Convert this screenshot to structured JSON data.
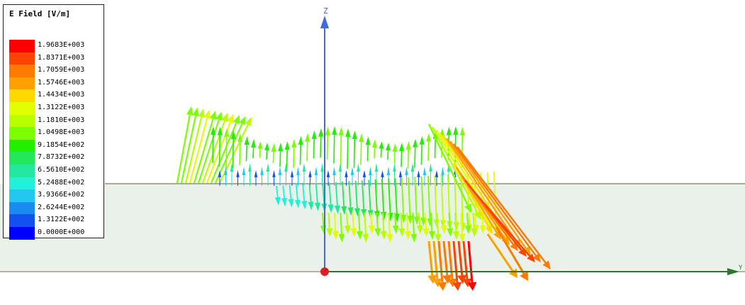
{
  "legend": {
    "title": "E Field [V/m]",
    "entries": [
      {
        "label": "1.9683E+003",
        "color": "#ff0000"
      },
      {
        "label": "1.8371E+003",
        "color": "#ff4400"
      },
      {
        "label": "1.7059E+003",
        "color": "#ff7a00"
      },
      {
        "label": "1.5746E+003",
        "color": "#ffa000"
      },
      {
        "label": "1.4434E+003",
        "color": "#ffd800"
      },
      {
        "label": "1.3122E+003",
        "color": "#e2ff00"
      },
      {
        "label": "1.1810E+003",
        "color": "#b8ff00"
      },
      {
        "label": "1.0498E+003",
        "color": "#7cff00"
      },
      {
        "label": "9.1854E+002",
        "color": "#22ee00"
      },
      {
        "label": "7.8732E+002",
        "color": "#22e85a"
      },
      {
        "label": "6.5610E+002",
        "color": "#22e8a0"
      },
      {
        "label": "5.2488E+002",
        "color": "#22f0d8"
      },
      {
        "label": "3.9366E+002",
        "color": "#22c8f0"
      },
      {
        "label": "2.6244E+002",
        "color": "#1a8cf0"
      },
      {
        "label": "1.3122E+002",
        "color": "#1250f0"
      },
      {
        "label": "0.0000E+000",
        "color": "#0000ff"
      }
    ]
  },
  "axes": {
    "z_label": "Z",
    "y_label": "Y",
    "z_axis_color": "#4169e1",
    "y_axis_color": "#2a7a2a",
    "origin_color": "#e02020"
  },
  "substrate": {
    "fill_color": "#eaf1ea",
    "edge_color": "#5a5a3a"
  },
  "field_icon": "vector-arrow-field"
}
